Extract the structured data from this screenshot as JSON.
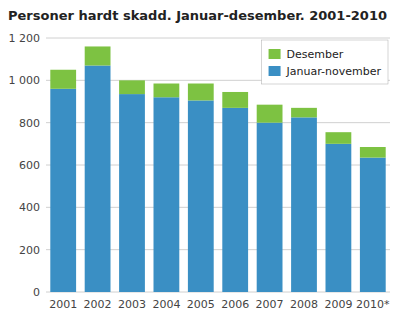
{
  "chart_data": {
    "type": "bar",
    "stacked": true,
    "title": "Personer hardt skadd. Januar-desember. 2001-2010",
    "categories": [
      "2001",
      "2002",
      "2003",
      "2004",
      "2005",
      "2006",
      "2007",
      "2008",
      "2009",
      "2010*"
    ],
    "series": [
      {
        "name": "Januar-november",
        "color": "#3a8fc4",
        "values": [
          960,
          1070,
          935,
          920,
          905,
          870,
          800,
          825,
          700,
          635
        ]
      },
      {
        "name": "Desember",
        "color": "#7dc242",
        "values": [
          90,
          90,
          65,
          65,
          80,
          75,
          85,
          45,
          55,
          50
        ]
      }
    ],
    "ylim": [
      0,
      1200
    ],
    "yticks": [
      0,
      200,
      400,
      600,
      800,
      {
        "value": 1000,
        "label": "1 000"
      },
      {
        "value": 1200,
        "label": "1 200"
      }
    ],
    "grid": true,
    "legend": "upper right"
  }
}
